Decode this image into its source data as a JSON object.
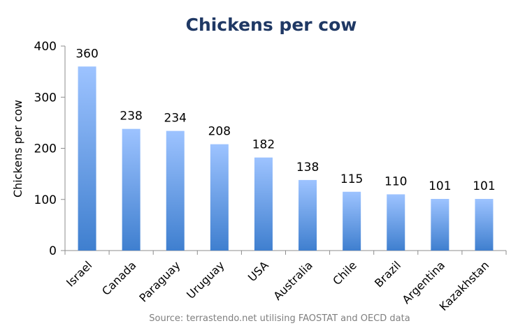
{
  "chart_data": {
    "type": "bar",
    "title": "Chickens per cow",
    "xlabel": "",
    "ylabel": "Chickens per cow",
    "categories": [
      "Israel",
      "Canada",
      "Paraguay",
      "Uruguay",
      "USA",
      "Australia",
      "Chile",
      "Brazil",
      "Argentina",
      "Kazakhstan"
    ],
    "values": [
      360,
      238,
      234,
      208,
      182,
      138,
      115,
      110,
      101,
      101
    ],
    "ylim": [
      0,
      400
    ],
    "yticks": [
      0,
      100,
      200,
      300,
      400
    ],
    "grid": false,
    "legend": "none",
    "source": "Source: terrastendo.net utilising FAOSTAT and OECD data",
    "colors": {
      "bar_top": "#9dc3ff",
      "bar_bottom": "#3f7fcf",
      "title": "#1f3864"
    }
  }
}
